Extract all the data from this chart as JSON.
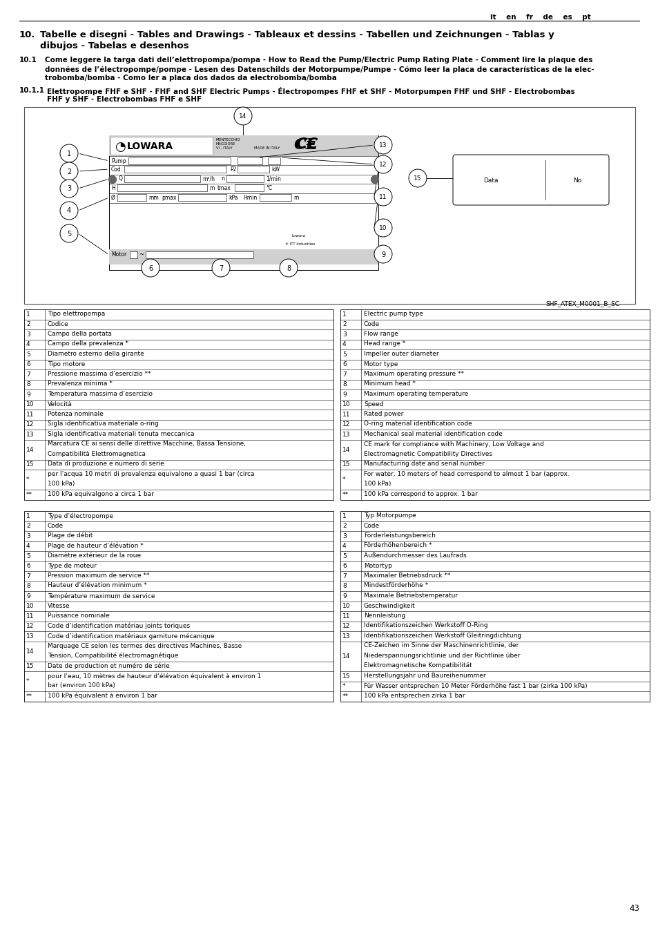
{
  "page_number": "43",
  "italian_table": [
    [
      "1",
      "Tipo elettropompa"
    ],
    [
      "2",
      "Codice"
    ],
    [
      "3",
      "Campo della portata"
    ],
    [
      "4",
      "Campo della prevalenza *"
    ],
    [
      "5",
      "Diametro esterno della girante"
    ],
    [
      "6",
      "Tipo motore"
    ],
    [
      "7",
      "Pressione massima d’esercizio **"
    ],
    [
      "8",
      "Prevalenza minima *"
    ],
    [
      "9",
      "Temperatura massima d’esercizio"
    ],
    [
      "10",
      "Velocità"
    ],
    [
      "11",
      "Potenza nominale"
    ],
    [
      "12",
      "Sigla identificativa materiale o-ring"
    ],
    [
      "13",
      "Sigla identificativa materiali tenuta meccanica"
    ],
    [
      "14",
      "Marcatura CE ai sensi delle direttive Macchine, Bassa Tensione,\nCompatibilità Elettromagnetica"
    ],
    [
      "15",
      "Data di produzione e numero di serie"
    ],
    [
      "*",
      "per l’acqua 10 metri di prevalenza equivalono a quasi 1 bar (circa\n100 kPa)"
    ],
    [
      "**",
      "100 kPa equivalgono a circa 1 bar"
    ]
  ],
  "english_table": [
    [
      "1",
      "Electric pump type"
    ],
    [
      "2",
      "Code"
    ],
    [
      "3",
      "Flow range"
    ],
    [
      "4",
      "Head range *"
    ],
    [
      "5",
      "Impeller outer diameter"
    ],
    [
      "6",
      "Motor type"
    ],
    [
      "7",
      "Maximum operating pressure **"
    ],
    [
      "8",
      "Minimum head *"
    ],
    [
      "9",
      "Maximum operating temperature"
    ],
    [
      "10",
      "Speed"
    ],
    [
      "11",
      "Rated power"
    ],
    [
      "12",
      "O-ring material identification code"
    ],
    [
      "13",
      "Mechanical seal material identification code"
    ],
    [
      "14",
      "CE mark for compliance with Machinery, Low Voltage and\nElectromagnetic Compatibility Directives"
    ],
    [
      "15",
      "Manufacturing date and serial number"
    ],
    [
      "*",
      "For water, 10 meters of head correspond to almost 1 bar (approx.\n100 kPa)"
    ],
    [
      "**",
      "100 kPa correspond to approx. 1 bar"
    ]
  ],
  "french_table": [
    [
      "1",
      "Type d’électropompe"
    ],
    [
      "2",
      "Code"
    ],
    [
      "3",
      "Plage de débit"
    ],
    [
      "4",
      "Plage de hauteur d’élévation *"
    ],
    [
      "5",
      "Diamètre extérieur de la roue"
    ],
    [
      "6",
      "Type de moteur"
    ],
    [
      "7",
      "Pression maximum de service **"
    ],
    [
      "8",
      "Hauteur d’élévation minimum *"
    ],
    [
      "9",
      "Température maximum de service"
    ],
    [
      "10",
      "Vitesse"
    ],
    [
      "11",
      "Puissance nominale"
    ],
    [
      "12",
      "Code d’identification matériau joints toriques"
    ],
    [
      "13",
      "Code d’identification matériaux garniture mécanique"
    ],
    [
      "14",
      "Marquage CE selon les termes des directives Machines, Basse\nTension, Compatibilité électromagnétique"
    ],
    [
      "15",
      "Date de production et numéro de série"
    ],
    [
      "*",
      "pour l’eau, 10 mètres de hauteur d’élévation équivalent à environ 1\nbar (environ 100 kPa)"
    ],
    [
      "**",
      "100 kPa équivalent à environ 1 bar"
    ]
  ],
  "german_table": [
    [
      "1",
      "Typ Motorpumpe"
    ],
    [
      "2",
      "Code"
    ],
    [
      "3",
      "Förderleistungsbereich"
    ],
    [
      "4",
      "Förderhöhenbereich *"
    ],
    [
      "5",
      "Außendurchmesser des Laufrads"
    ],
    [
      "6",
      "Motortyp"
    ],
    [
      "7",
      "Maximaler Betriebsdruck **"
    ],
    [
      "8",
      "Mindestförderhöhe *"
    ],
    [
      "9",
      "Maximale Betriebstemperatur"
    ],
    [
      "10",
      "Geschwindigkeit"
    ],
    [
      "11",
      "Nennleistung"
    ],
    [
      "12",
      "Identifikationszeichen Werkstoff O-Ring"
    ],
    [
      "13",
      "Identifikationszeichen Werkstoff Gleitringdichtung"
    ],
    [
      "14",
      "CE-Zeichen im Sinne der Maschinenrichtlinie, der\nNiederspannungsrichtlinie und der Richtlinie über\nElektromagnetische Kompatibilität"
    ],
    [
      "15",
      "Herstellungsjahr und Baureihenummer"
    ],
    [
      "*",
      "Für Wasser entsprechen 10 Meter Förderhöhe fast 1 bar (zirka 100 kPa)"
    ],
    [
      "**",
      "100 kPa entsprechen zirka 1 bar"
    ]
  ]
}
